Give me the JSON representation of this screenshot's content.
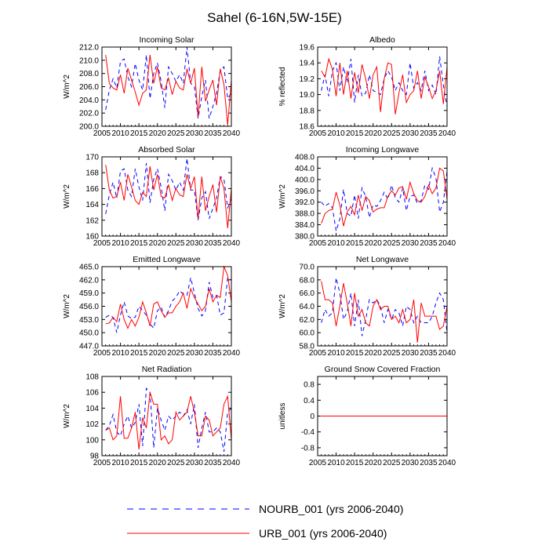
{
  "title": "Sahel (6-16N,5W-15E)",
  "legend": [
    {
      "label": "NOURB_001 (yrs 2006-2040)",
      "color": "#0000ff",
      "dash": "dashed"
    },
    {
      "label": "URB_001 (yrs 2006-2040)",
      "color": "#ff0000",
      "dash": "solid"
    }
  ],
  "chart_data": [
    {
      "type": "line",
      "title": "Incoming Solar",
      "ylabel": "W/m^2",
      "xlim": [
        2005,
        2040
      ],
      "ylim": [
        200,
        212
      ],
      "xticks": [
        "2005",
        "2010",
        "2015",
        "2020",
        "2025",
        "2030",
        "2035",
        "2040"
      ],
      "yticks": [
        "200.0",
        "202.0",
        "204.0",
        "206.0",
        "208.0",
        "210.0",
        "212.0"
      ],
      "x": [
        2006,
        2007,
        2008,
        2009,
        2010,
        2011,
        2012,
        2013,
        2014,
        2015,
        2016,
        2017,
        2018,
        2019,
        2020,
        2021,
        2022,
        2023,
        2024,
        2025,
        2026,
        2027,
        2028,
        2029,
        2030,
        2031,
        2032,
        2033,
        2034,
        2035,
        2036,
        2037,
        2038,
        2039,
        2040
      ],
      "series": [
        {
          "name": "NOURB_001",
          "values": [
            202.5,
            205.5,
            207.2,
            205.8,
            209.8,
            210.2,
            207.5,
            206.0,
            209.5,
            207.0,
            205.5,
            210.8,
            204.2,
            208.0,
            209.6,
            206.8,
            202.8,
            209.0,
            208.0,
            206.8,
            207.8,
            206.5,
            212.0,
            206.5,
            206.0,
            201.2,
            204.5,
            207.0,
            201.2,
            203.0,
            205.0,
            208.5,
            209.0,
            204.2,
            205.0
          ]
        },
        {
          "name": "URB_001",
          "values": [
            210.8,
            206.5,
            205.8,
            205.5,
            207.8,
            205.0,
            208.8,
            207.0,
            205.2,
            203.2,
            205.0,
            205.5,
            210.8,
            206.5,
            209.0,
            205.8,
            205.5,
            207.3,
            204.8,
            206.8,
            205.8,
            205.5,
            208.7,
            206.5,
            208.8,
            201.4,
            209.0,
            203.8,
            205.5,
            207.0,
            203.2,
            208.7,
            206.3,
            200.2,
            207.0
          ]
        }
      ]
    },
    {
      "type": "line",
      "title": "Albedo",
      "ylabel": "% reflected",
      "xlim": [
        2005,
        2040
      ],
      "ylim": [
        18.6,
        19.6
      ],
      "xticks": [
        "2005",
        "2010",
        "2015",
        "2020",
        "2025",
        "2030",
        "2035",
        "2040"
      ],
      "yticks": [
        "18.6",
        "18.8",
        "19.0",
        "19.2",
        "19.4",
        "19.6"
      ],
      "x": [
        2006,
        2007,
        2008,
        2009,
        2010,
        2011,
        2012,
        2013,
        2014,
        2015,
        2016,
        2017,
        2018,
        2019,
        2020,
        2021,
        2022,
        2023,
        2024,
        2025,
        2026,
        2027,
        2028,
        2029,
        2030,
        2031,
        2032,
        2033,
        2034,
        2035,
        2036,
        2037,
        2038,
        2039,
        2040
      ],
      "series": [
        {
          "name": "NOURB_001",
          "values": [
            19.05,
            19.25,
            18.98,
            19.3,
            19.4,
            19.05,
            19.35,
            19.15,
            19.45,
            18.9,
            19.25,
            18.98,
            19.02,
            19.25,
            19.05,
            19.03,
            19.0,
            19.2,
            19.3,
            19.22,
            19.05,
            19.15,
            19.05,
            19.0,
            19.4,
            19.08,
            19.15,
            19.05,
            19.3,
            19.05,
            19.12,
            19.0,
            19.48,
            19.12,
            18.85
          ]
        },
        {
          "name": "URB_001",
          "values": [
            19.3,
            19.22,
            19.45,
            19.32,
            18.98,
            19.4,
            19.0,
            19.3,
            18.95,
            19.28,
            19.02,
            19.38,
            19.2,
            18.95,
            19.25,
            19.35,
            18.78,
            19.2,
            19.4,
            19.38,
            18.75,
            19.02,
            19.25,
            18.9,
            19.0,
            19.05,
            19.3,
            18.95,
            19.22,
            19.1,
            18.95,
            19.05,
            19.3,
            18.88,
            19.35
          ]
        }
      ]
    },
    {
      "type": "line",
      "title": "Absorbed Solar",
      "ylabel": "W/m^2",
      "xlim": [
        2005,
        2040
      ],
      "ylim": [
        160,
        170
      ],
      "xticks": [
        "2005",
        "2010",
        "2015",
        "2020",
        "2025",
        "2030",
        "2035",
        "2040"
      ],
      "yticks": [
        "160",
        "162",
        "164",
        "166",
        "168",
        "170"
      ],
      "x": [
        2006,
        2007,
        2008,
        2009,
        2010,
        2011,
        2012,
        2013,
        2014,
        2015,
        2016,
        2017,
        2018,
        2019,
        2020,
        2021,
        2022,
        2023,
        2024,
        2025,
        2026,
        2027,
        2028,
        2029,
        2030,
        2031,
        2032,
        2033,
        2034,
        2035,
        2036,
        2037,
        2038,
        2039,
        2040
      ],
      "series": [
        {
          "name": "NOURB_001",
          "values": [
            162.8,
            165.2,
            166.8,
            164.8,
            168.2,
            168.5,
            165.8,
            165.0,
            168.5,
            166.2,
            164.5,
            169.2,
            164.2,
            167.2,
            168.5,
            166.2,
            163.2,
            167.8,
            167.0,
            165.8,
            166.8,
            165.8,
            169.8,
            165.8,
            165.8,
            162.0,
            164.8,
            165.6,
            162.2,
            163.5,
            164.8,
            167.5,
            167.2,
            163.5,
            164.8
          ]
        },
        {
          "name": "URB_001",
          "values": [
            169.0,
            165.8,
            164.8,
            165.0,
            166.8,
            164.5,
            167.8,
            166.2,
            164.5,
            164.0,
            165.5,
            165.0,
            168.8,
            165.8,
            167.8,
            165.0,
            164.8,
            166.5,
            164.5,
            166.0,
            165.2,
            165.0,
            167.8,
            166.0,
            167.5,
            162.2,
            167.5,
            163.2,
            165.0,
            166.5,
            163.0,
            167.5,
            166.0,
            161.0,
            166.0
          ]
        }
      ]
    },
    {
      "type": "line",
      "title": "Incoming Longwave",
      "ylabel": "W/m^2",
      "xlim": [
        2005,
        2040
      ],
      "ylim": [
        380,
        408
      ],
      "xticks": [
        "2005",
        "2010",
        "2015",
        "2020",
        "2025",
        "2030",
        "2035",
        "2040"
      ],
      "yticks": [
        "380.0",
        "384.0",
        "388.0",
        "392.0",
        "396.0",
        "400.0",
        "404.0",
        "408.0"
      ],
      "x": [
        2006,
        2007,
        2008,
        2009,
        2010,
        2011,
        2012,
        2013,
        2014,
        2015,
        2016,
        2017,
        2018,
        2019,
        2020,
        2021,
        2022,
        2023,
        2024,
        2025,
        2026,
        2027,
        2028,
        2029,
        2030,
        2031,
        2032,
        2033,
        2034,
        2035,
        2036,
        2037,
        2038,
        2039,
        2040
      ],
      "series": [
        {
          "name": "NOURB_001",
          "values": [
            392.0,
            390.5,
            391.5,
            390.0,
            381.8,
            386.0,
            396.5,
            388.0,
            387.0,
            394.5,
            386.2,
            397.0,
            394.0,
            386.5,
            391.0,
            390.5,
            392.5,
            395.5,
            393.0,
            398.0,
            393.5,
            392.0,
            397.0,
            389.0,
            394.0,
            394.5,
            391.5,
            392.5,
            398.0,
            396.5,
            404.0,
            400.5,
            388.5,
            392.0,
            403.0
          ]
        },
        {
          "name": "URB_001",
          "values": [
            384.5,
            388.0,
            389.0,
            389.5,
            395.5,
            391.0,
            383.5,
            388.5,
            390.5,
            387.5,
            394.5,
            389.0,
            394.0,
            392.5,
            388.5,
            389.5,
            390.0,
            390.0,
            394.0,
            396.0,
            394.5,
            397.0,
            397.5,
            393.0,
            399.0,
            395.0,
            392.5,
            392.0,
            394.0,
            398.0,
            395.0,
            397.0,
            404.0,
            403.0,
            393.0
          ]
        }
      ]
    },
    {
      "type": "line",
      "title": "Emitted Longwave",
      "ylabel": "W/m^2",
      "xlim": [
        2005,
        2040
      ],
      "ylim": [
        447,
        465
      ],
      "xticks": [
        "2005",
        "2010",
        "2015",
        "2020",
        "2025",
        "2030",
        "2035",
        "2040"
      ],
      "yticks": [
        "447.0",
        "450.0",
        "453.0",
        "456.0",
        "459.0",
        "462.0",
        "465.0"
      ],
      "x": [
        2006,
        2007,
        2008,
        2009,
        2010,
        2011,
        2012,
        2013,
        2014,
        2015,
        2016,
        2017,
        2018,
        2019,
        2020,
        2021,
        2022,
        2023,
        2024,
        2025,
        2026,
        2027,
        2028,
        2029,
        2030,
        2031,
        2032,
        2033,
        2034,
        2035,
        2036,
        2037,
        2038,
        2039,
        2040
      ],
      "series": [
        {
          "name": "NOURB_001",
          "values": [
            453.5,
            454.0,
            453.5,
            450.0,
            454.0,
            457.0,
            453.8,
            453.2,
            453.5,
            456.0,
            455.0,
            454.0,
            452.0,
            451.0,
            455.0,
            455.8,
            453.5,
            455.0,
            457.2,
            458.0,
            459.5,
            458.8,
            458.5,
            462.5,
            459.0,
            455.5,
            453.8,
            455.0,
            461.5,
            458.0,
            458.5,
            454.0,
            454.5,
            462.5,
            462.0
          ]
        },
        {
          "name": "URB_001",
          "values": [
            452.0,
            452.2,
            453.5,
            452.5,
            456.5,
            453.0,
            451.0,
            453.0,
            451.5,
            453.5,
            457.0,
            454.5,
            451.5,
            456.5,
            457.0,
            455.0,
            453.5,
            454.5,
            454.5,
            456.0,
            457.0,
            459.0,
            455.5,
            460.0,
            458.0,
            456.5,
            455.0,
            456.0,
            460.0,
            457.0,
            458.5,
            458.0,
            465.0,
            463.0,
            457.0
          ]
        }
      ]
    },
    {
      "type": "line",
      "title": "Net Longwave",
      "ylabel": "W/m^2",
      "xlim": [
        2005,
        2040
      ],
      "ylim": [
        58,
        70
      ],
      "xticks": [
        "2005",
        "2010",
        "2015",
        "2020",
        "2025",
        "2030",
        "2035",
        "2040"
      ],
      "yticks": [
        "58.0",
        "60.0",
        "62.0",
        "64.0",
        "66.0",
        "68.0",
        "70.0"
      ],
      "x": [
        2006,
        2007,
        2008,
        2009,
        2010,
        2011,
        2012,
        2013,
        2014,
        2015,
        2016,
        2017,
        2018,
        2019,
        2020,
        2021,
        2022,
        2023,
        2024,
        2025,
        2026,
        2027,
        2028,
        2029,
        2030,
        2031,
        2032,
        2033,
        2034,
        2035,
        2036,
        2037,
        2038,
        2039,
        2040
      ],
      "series": [
        {
          "name": "NOURB_001",
          "values": [
            61.5,
            63.5,
            62.5,
            63.0,
            68.3,
            66.0,
            62.0,
            63.2,
            66.0,
            61.0,
            65.0,
            59.5,
            62.0,
            65.0,
            64.5,
            65.0,
            64.0,
            61.5,
            63.5,
            62.0,
            63.5,
            63.0,
            61.0,
            64.0,
            63.5,
            61.5,
            62.5,
            61.5,
            61.5,
            61.5,
            62.5,
            64.5,
            66.0,
            65.0,
            60.0
          ]
        },
        {
          "name": "URB_001",
          "values": [
            67.8,
            65.0,
            65.0,
            64.5,
            61.0,
            64.0,
            67.5,
            64.5,
            61.0,
            66.0,
            62.5,
            63.5,
            61.5,
            61.0,
            64.0,
            65.0,
            63.5,
            64.0,
            64.0,
            62.0,
            62.5,
            61.5,
            63.5,
            61.5,
            62.0,
            65.0,
            58.5,
            64.5,
            62.5,
            62.5,
            62.5,
            62.5,
            60.5,
            61.0,
            64.0
          ]
        }
      ]
    },
    {
      "type": "line",
      "title": "Net Radiation",
      "ylabel": "W/m^2",
      "xlim": [
        2005,
        2040
      ],
      "ylim": [
        98,
        108
      ],
      "xticks": [
        "2005",
        "2010",
        "2015",
        "2020",
        "2025",
        "2030",
        "2035",
        "2040"
      ],
      "yticks": [
        "98",
        "100",
        "102",
        "104",
        "106",
        "108"
      ],
      "x": [
        2006,
        2007,
        2008,
        2009,
        2010,
        2011,
        2012,
        2013,
        2014,
        2015,
        2016,
        2017,
        2018,
        2019,
        2020,
        2021,
        2022,
        2023,
        2024,
        2025,
        2026,
        2027,
        2028,
        2029,
        2030,
        2031,
        2032,
        2033,
        2034,
        2035,
        2036,
        2037,
        2038,
        2039,
        2040
      ],
      "series": [
        {
          "name": "NOURB_001",
          "values": [
            101.2,
            101.8,
            103.2,
            101.0,
            100.5,
            102.0,
            103.0,
            101.5,
            102.2,
            104.5,
            99.2,
            106.5,
            106.0,
            99.0,
            104.0,
            102.5,
            101.2,
            103.0,
            102.5,
            103.0,
            103.5,
            103.0,
            103.8,
            102.0,
            104.5,
            99.0,
            101.5,
            103.5,
            101.0,
            101.0,
            101.5,
            101.0,
            98.5,
            103.5,
            104.0
          ]
        },
        {
          "name": "URB_001",
          "values": [
            101.2,
            101.5,
            100.0,
            100.5,
            105.5,
            100.2,
            100.2,
            101.5,
            103.5,
            98.8,
            102.8,
            101.5,
            106.0,
            104.5,
            104.5,
            100.0,
            100.5,
            99.5,
            100.0,
            103.5,
            102.5,
            103.0,
            103.5,
            105.5,
            103.5,
            100.5,
            100.5,
            103.0,
            102.5,
            100.5,
            101.0,
            101.5,
            104.5,
            105.5,
            100.0
          ]
        }
      ]
    },
    {
      "type": "line",
      "title": "Ground Snow Covered Fraction",
      "ylabel": "unitless",
      "xlim": [
        2005,
        2040
      ],
      "ylim": [
        -1,
        1
      ],
      "xticks": [
        "2005",
        "2010",
        "2015",
        "2020",
        "2025",
        "2030",
        "2035",
        "2040"
      ],
      "yticks": [
        "-0.8",
        "-0.4",
        "0",
        "0.4",
        "0.8"
      ],
      "ytick_values": [
        -0.8,
        -0.4,
        0,
        0.4,
        0.8
      ],
      "x": [
        2006,
        2040
      ],
      "series": [
        {
          "name": "NOURB_001",
          "values": [
            0,
            0
          ]
        },
        {
          "name": "URB_001",
          "values": [
            0,
            0
          ]
        }
      ]
    }
  ]
}
